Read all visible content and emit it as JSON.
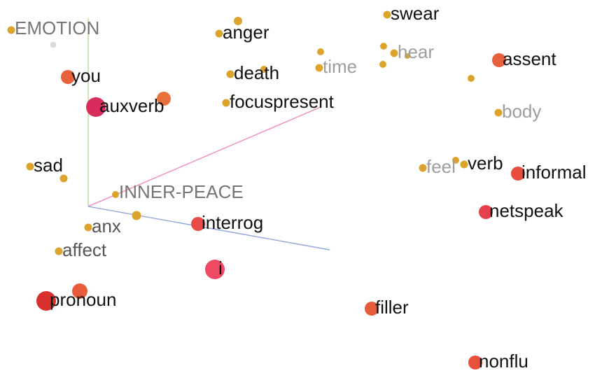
{
  "axes": [
    {
      "key": "emotion",
      "label": "EMOTION",
      "color": "#b5d99c",
      "label_color": "#757575"
    },
    {
      "key": "inner_peace",
      "label": "INNER-PEACE",
      "color": "#f08dc0",
      "label_color": "#757575"
    },
    {
      "key": "unlabeled",
      "label": "",
      "color": "#8fa8dc",
      "label_color": "#757575"
    }
  ],
  "colors": {
    "small_point": "#dca42c",
    "label_dark": "#111111",
    "label_faded": "#9e9e9e",
    "label_mid": "#555555"
  },
  "points": [
    {
      "label": "swear",
      "size": "small",
      "color": "#dca42c",
      "tone": "dark"
    },
    {
      "label": "anger",
      "size": "small",
      "color": "#dca42c",
      "tone": "dark"
    },
    {
      "label": "hear",
      "size": "small",
      "color": "#dca42c",
      "tone": "faded"
    },
    {
      "label": "assent",
      "size": "medium",
      "color": "#e8603c",
      "tone": "dark"
    },
    {
      "label": "time",
      "size": "small",
      "color": "#dca42c",
      "tone": "faded"
    },
    {
      "label": "death",
      "size": "small",
      "color": "#dca42c",
      "tone": "dark"
    },
    {
      "label": "you",
      "size": "medium",
      "color": "#e8603c",
      "tone": "dark"
    },
    {
      "label": "auxverb",
      "size": "large",
      "color": "#d82c5c",
      "tone": "dark"
    },
    {
      "label": "focuspresent",
      "size": "small",
      "color": "#dca42c",
      "tone": "dark"
    },
    {
      "label": "body",
      "size": "small",
      "color": "#dca42c",
      "tone": "faded"
    },
    {
      "label": "sad",
      "size": "small",
      "color": "#dca42c",
      "tone": "dark"
    },
    {
      "label": "feel",
      "size": "small",
      "color": "#dca42c",
      "tone": "faded"
    },
    {
      "label": "verb",
      "size": "small",
      "color": "#dca42c",
      "tone": "dark"
    },
    {
      "label": "informal",
      "size": "medium",
      "color": "#e84c3c",
      "tone": "dark"
    },
    {
      "label": "netspeak",
      "size": "medium",
      "color": "#e8404c",
      "tone": "dark"
    },
    {
      "label": "interrog",
      "size": "medium",
      "color": "#e84c48",
      "tone": "dark"
    },
    {
      "label": "anx",
      "size": "small",
      "color": "#dca42c",
      "tone": "mid"
    },
    {
      "label": "affect",
      "size": "small",
      "color": "#dca42c",
      "tone": "mid"
    },
    {
      "label": "i",
      "size": "large",
      "color": "#ee4a64",
      "tone": "dark"
    },
    {
      "label": "pronoun",
      "size": "large",
      "color": "#d8302c",
      "tone": "dark"
    },
    {
      "label": "filler",
      "size": "medium",
      "color": "#e85c3c",
      "tone": "dark"
    },
    {
      "label": "nonflu",
      "size": "medium",
      "color": "#e8503c",
      "tone": "dark"
    }
  ]
}
